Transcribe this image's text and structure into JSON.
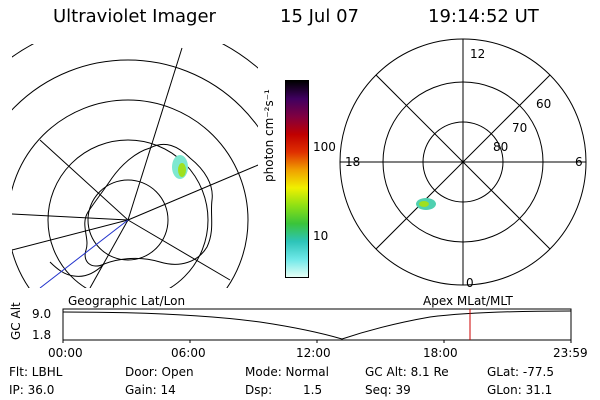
{
  "header": {
    "title": "Ultraviolet Imager",
    "date": "15 Jul 07",
    "time": "19:14:52 UT"
  },
  "left_map": {
    "label": "Geographic Lat/Lon"
  },
  "right_map": {
    "label": "Apex MLat/MLT",
    "mlt_labels": {
      "top": "12",
      "left": "18",
      "right": "6",
      "bottom": "0"
    },
    "lat_labels": [
      "60",
      "70",
      "80"
    ]
  },
  "colorbar": {
    "unit": "photon cm⁻²s⁻¹",
    "ticks": [
      "100",
      "10"
    ],
    "colors": [
      "#e6fff6",
      "#6ee8e8",
      "#2dc4b8",
      "#3ac43a",
      "#8ee014",
      "#f0f000",
      "#f0a000",
      "#e03000",
      "#c00000",
      "#800040",
      "#400060",
      "#000000"
    ]
  },
  "altitude_plot": {
    "ylabel": "GC Alt",
    "yticks": [
      "9.0",
      "1.8"
    ],
    "xticks": [
      "00:00",
      "06:00",
      "12:00",
      "18:00",
      "23:59"
    ],
    "marker_color": "#cc0000"
  },
  "footer": {
    "filter": "Flt: LBHL",
    "door": "Door: Open",
    "mode": "Mode: Normal",
    "gc_alt": "GC Alt: 8.1 Re",
    "glat": "GLat: -77.5",
    "ip": "IP: 36.0",
    "gain": "Gain: 14",
    "dsp_label": "Dsp:",
    "dsp_value": "1.5",
    "seq": "Seq: 39",
    "glon": "GLon:  31.1"
  }
}
